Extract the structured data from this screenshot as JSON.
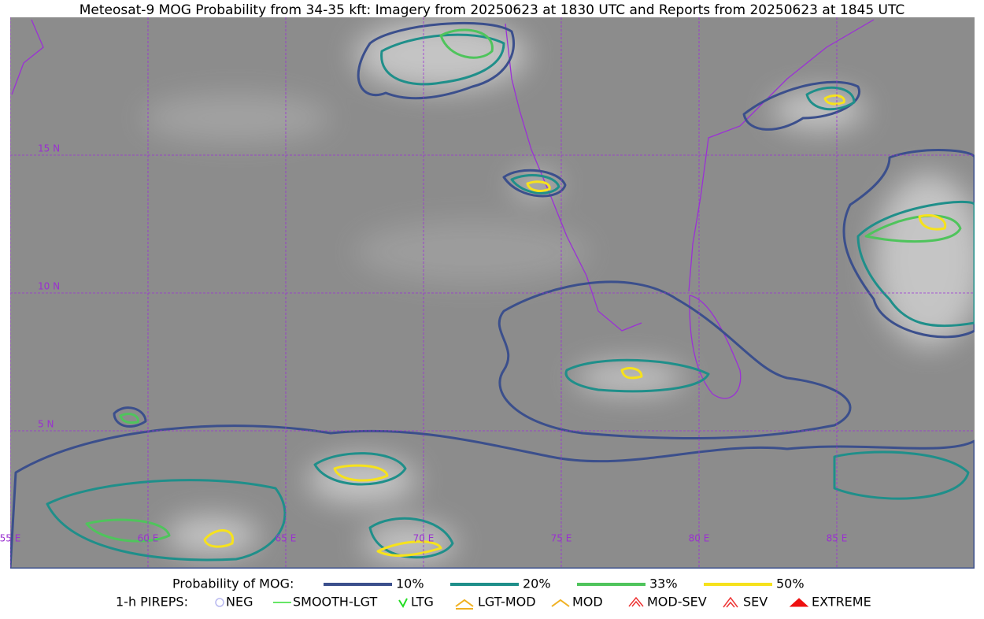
{
  "header": {
    "title": "Meteosat-9 MOG Probability from 34-35 kft: Imagery from 20250623 at 1830 UTC and Reports from 20250623 at 1845 UTC"
  },
  "map": {
    "lat_labels": [
      "15 N",
      "10 N",
      "5 N"
    ],
    "lon_labels": [
      "55 E",
      "60 E",
      "65 E",
      "70 E",
      "75 E",
      "80 E",
      "85 E"
    ]
  },
  "legend": {
    "mog": {
      "title": "Probability of MOG:",
      "items": [
        {
          "label": "10%",
          "color": "#3b4f8c"
        },
        {
          "label": "20%",
          "color": "#1f8f8a"
        },
        {
          "label": "33%",
          "color": "#4fc45c"
        },
        {
          "label": "50%",
          "color": "#f6e21c"
        }
      ]
    },
    "pireps": {
      "title": "1-h PIREPS:",
      "items": [
        {
          "label": "NEG",
          "color": "#b8b8f0"
        },
        {
          "label": "SMOOTH-LGT",
          "color": "#33dd33"
        },
        {
          "label": "LTG",
          "color": "#22dd22"
        },
        {
          "label": "LGT-MOD",
          "color": "#f0b020"
        },
        {
          "label": "MOD",
          "color": "#f0b020"
        },
        {
          "label": "MOD-SEV",
          "color": "#ee3333"
        },
        {
          "label": "SEV",
          "color": "#ee3333"
        },
        {
          "label": "EXTREME",
          "color": "#ee1111"
        }
      ]
    }
  }
}
